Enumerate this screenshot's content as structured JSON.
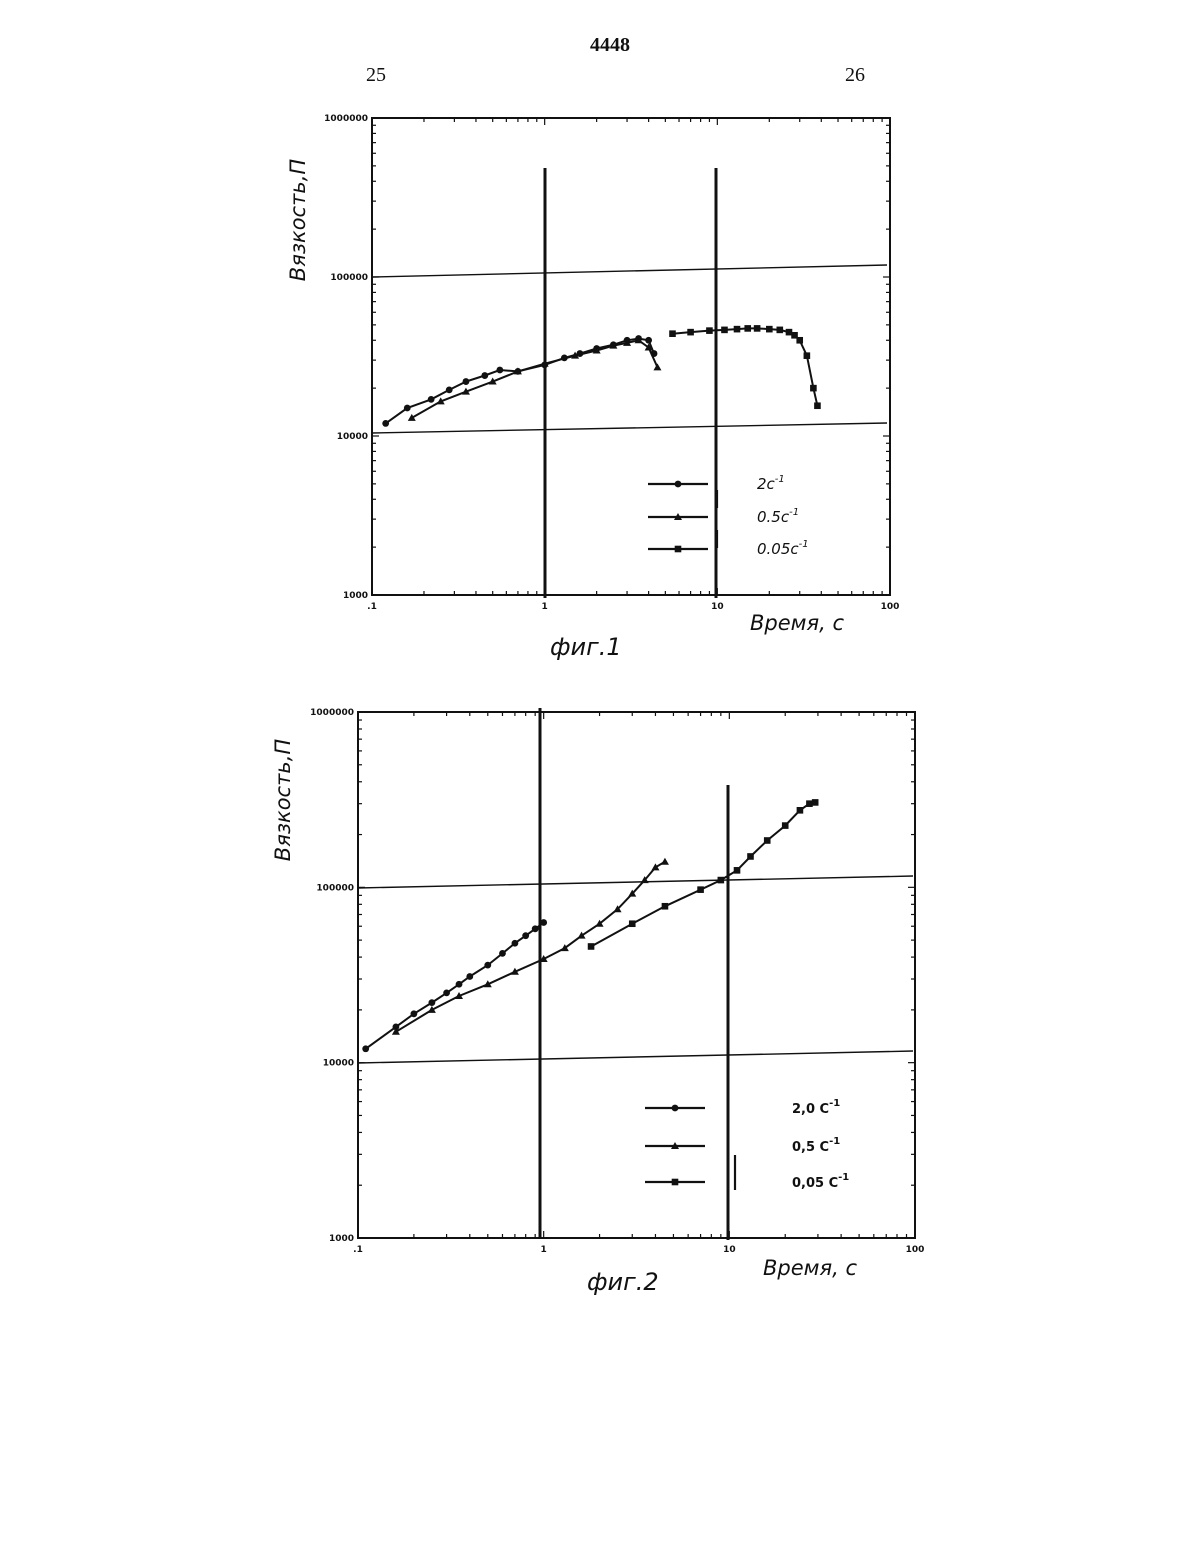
{
  "header": {
    "doc_number": "4448",
    "page_left": "25",
    "page_right": "26"
  },
  "chart_data": [
    {
      "type": "line",
      "caption": "фиг.1",
      "xlabel": "Время, с",
      "ylabel": "Вязкость,П",
      "xscale": "log",
      "yscale": "log",
      "xlim": [
        0.1,
        100
      ],
      "ylim": [
        1000,
        1000000
      ],
      "x_ticks": [
        ".1",
        "1",
        "10",
        "100"
      ],
      "y_ticks": [
        "1000",
        "10000",
        "100000",
        "1000000"
      ],
      "legend_position": "lower-right",
      "series": [
        {
          "name": "2с",
          "exp": "-1",
          "marker": "circle",
          "x": [
            0.12,
            0.16,
            0.22,
            0.28,
            0.35,
            0.45,
            0.55,
            0.7,
            1.0,
            1.3,
            1.6,
            2.0,
            2.5,
            3.0,
            3.5,
            4.0,
            4.3
          ],
          "y": [
            12000,
            15000,
            17000,
            19500,
            22000,
            24000,
            26000,
            25500,
            28000,
            31000,
            33000,
            35500,
            37500,
            40000,
            41000,
            40000,
            33000
          ]
        },
        {
          "name": "0.5с",
          "exp": "-1",
          "marker": "triangle",
          "x": [
            0.17,
            0.25,
            0.35,
            0.5,
            0.7,
            1.0,
            1.5,
            2.0,
            2.5,
            3.0,
            3.5,
            4.0,
            4.5
          ],
          "y": [
            13000,
            16500,
            19000,
            22000,
            25500,
            28500,
            32000,
            34500,
            37000,
            38500,
            40000,
            36000,
            27000
          ]
        },
        {
          "name": "0.05с",
          "exp": "-1",
          "marker": "square",
          "x": [
            5.5,
            7,
            9,
            11,
            13,
            15,
            17,
            20,
            23,
            26,
            28,
            30,
            33,
            36,
            38
          ],
          "y": [
            44000,
            45000,
            46000,
            46500,
            47000,
            47500,
            47500,
            47000,
            46500,
            45000,
            43000,
            40000,
            32000,
            20000,
            15500
          ]
        }
      ]
    },
    {
      "type": "line",
      "caption": "фиг.2",
      "xlabel": "Время, с",
      "ylabel": "Вязкость,П",
      "xscale": "log",
      "yscale": "log",
      "xlim": [
        0.1,
        100
      ],
      "ylim": [
        1000,
        1000000
      ],
      "x_ticks": [
        ".1",
        "1",
        "10",
        "100"
      ],
      "y_ticks": [
        "1000",
        "10000",
        "100000",
        "1000000"
      ],
      "legend_position": "lower-right",
      "series": [
        {
          "name": "2,0 С",
          "exp": "-1",
          "marker": "circle",
          "x": [
            0.11,
            0.16,
            0.2,
            0.25,
            0.3,
            0.35,
            0.4,
            0.5,
            0.6,
            0.7,
            0.8,
            0.9,
            1.0
          ],
          "y": [
            12000,
            16000,
            19000,
            22000,
            25000,
            28000,
            31000,
            36000,
            42000,
            48000,
            53000,
            58000,
            63000
          ]
        },
        {
          "name": "0,5 С",
          "exp": "-1",
          "marker": "triangle",
          "x": [
            0.16,
            0.25,
            0.35,
            0.5,
            0.7,
            1.0,
            1.3,
            1.6,
            2.0,
            2.5,
            3.0,
            3.5,
            4.0,
            4.5
          ],
          "y": [
            15000,
            20000,
            24000,
            28000,
            33000,
            39000,
            45000,
            53000,
            62000,
            75000,
            92000,
            110000,
            130000,
            140000
          ]
        },
        {
          "name": "0,05 С",
          "exp": "-1",
          "marker": "square",
          "x": [
            1.8,
            3.0,
            4.5,
            7.0,
            9.0,
            11.0,
            13.0,
            16.0,
            20.0,
            24.0,
            27.0,
            29.0
          ],
          "y": [
            46000,
            62000,
            78000,
            97000,
            110000,
            125000,
            150000,
            185000,
            225000,
            275000,
            300000,
            305000
          ]
        }
      ]
    }
  ]
}
